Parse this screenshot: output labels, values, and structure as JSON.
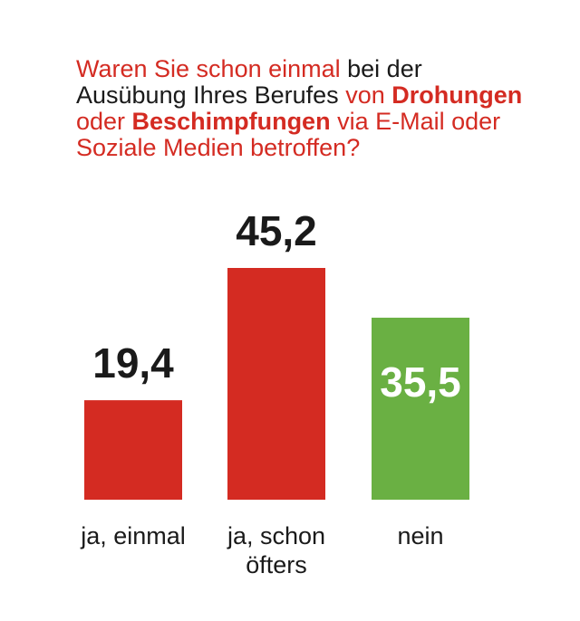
{
  "question": {
    "segments": [
      {
        "text": "Waren Sie schon einmal",
        "style": "red"
      },
      {
        "text": " bei der Ausübung Ihres Berufes ",
        "style": "dark"
      },
      {
        "text": "von ",
        "style": "red"
      },
      {
        "text": "Drohungen",
        "style": "bold"
      },
      {
        "text": " oder ",
        "style": "red"
      },
      {
        "text": "Beschimpfungen",
        "style": "bold"
      },
      {
        "text": " via E-Mail oder Soziale Medien betroffen?",
        "style": "red"
      }
    ]
  },
  "colors": {
    "red": "#d42b22",
    "green": "#6ab043",
    "dark": "#1a1a1a",
    "white": "#ffffff"
  },
  "chart_data": {
    "type": "bar",
    "title": "Waren Sie schon einmal bei der Ausübung Ihres Berufes von Drohungen oder Beschimpfungen via E-Mail oder Soziale Medien betroffen?",
    "categories": [
      [
        "ja, einmal"
      ],
      [
        "ja, schon",
        "öfters"
      ],
      [
        "nein"
      ]
    ],
    "values": [
      19.4,
      45.2,
      35.5
    ],
    "value_labels": [
      "19,4",
      "45,2",
      "35,5"
    ],
    "bar_colors": [
      "#d42b22",
      "#d42b22",
      "#6ab043"
    ],
    "label_inside": [
      false,
      false,
      true
    ],
    "ylim": [
      0,
      45.2
    ],
    "grid": false,
    "legend": "none"
  }
}
